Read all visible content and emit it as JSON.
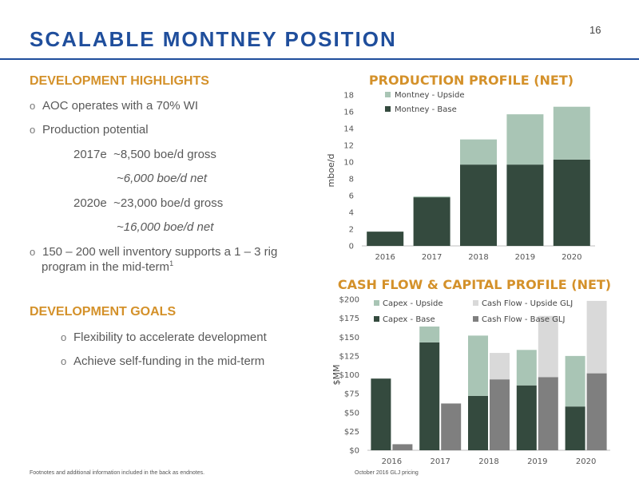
{
  "page": {
    "number": "16",
    "title": "SCALABLE MONTNEY POSITION",
    "footnote_left": "Footnotes and additional information included in the back as endnotes.",
    "footnote_right": "October 2016 GLJ pricing"
  },
  "highlights": {
    "heading": "DEVELOPMENT HIGHLIGHTS",
    "bullet_glyph": "o",
    "b1": "AOC operates with a 70% WI",
    "b2": "Production potential",
    "l_2017": "2017e",
    "l_2017_gross": "~8,500 boe/d gross",
    "l_2017_net": "~6,000 boe/d net",
    "l_2020": "2020e",
    "l_2020_gross": "~23,000 boe/d gross",
    "l_2020_net": "~16,000 boe/d net",
    "b3_line1": "150 – 200  well inventory supports a 1 – 3 rig",
    "b3_line2": "program in the mid-term",
    "b3_sup": "1"
  },
  "goals": {
    "heading": "DEVELOPMENT GOALS",
    "g1": "Flexibility to accelerate development",
    "g2": "Achieve self-funding in the mid-term"
  },
  "chart_data": [
    {
      "type": "bar",
      "stacked": true,
      "title": "PRODUCTION PROFILE (NET)",
      "ylabel": "mboe/d",
      "categories": [
        "2016",
        "2017",
        "2018",
        "2019",
        "2020"
      ],
      "ylim": [
        0,
        18
      ],
      "yticks": [
        "0",
        "2",
        "4",
        "6",
        "8",
        "10",
        "12",
        "14",
        "16",
        "18"
      ],
      "legend_position": "top-left",
      "series": [
        {
          "name": "Montney - Base",
          "values": [
            1.7,
            5.8,
            9.7,
            9.7,
            10.3
          ],
          "color": "#344a3e"
        },
        {
          "name": "Montney - Upside",
          "values": [
            0,
            0.1,
            3.0,
            6.0,
            6.3
          ],
          "color": "#a9c5b5"
        }
      ]
    },
    {
      "type": "bar",
      "grouped_stacked": true,
      "title": "CASH FLOW & CAPITAL PROFILE (NET)",
      "ylabel": "$MM",
      "categories": [
        "2016",
        "2017",
        "2018",
        "2019",
        "2020"
      ],
      "ylim": [
        0,
        200
      ],
      "yticks": [
        "$0",
        "$25",
        "$50",
        "$75",
        "$100",
        "$125",
        "$150",
        "$175",
        "$200"
      ],
      "legend_position": "top",
      "groups": [
        {
          "name": "Capex",
          "series": [
            {
              "name": "Capex - Base",
              "values": [
                95,
                143,
                72,
                86,
                58
              ],
              "color": "#344a3e"
            },
            {
              "name": "Capex - Upside",
              "values": [
                0,
                21,
                80,
                47,
                67
              ],
              "color": "#a9c5b5"
            }
          ]
        },
        {
          "name": "Cash Flow",
          "series": [
            {
              "name": "Cash Flow - Base GLJ",
              "values": [
                8,
                62,
                94,
                97,
                102
              ],
              "color": "#7f7f7f"
            },
            {
              "name": "Cash Flow - Upside GLJ",
              "values": [
                0,
                0,
                35,
                81,
                96
              ],
              "color": "#d9d9d9"
            }
          ]
        }
      ]
    }
  ]
}
